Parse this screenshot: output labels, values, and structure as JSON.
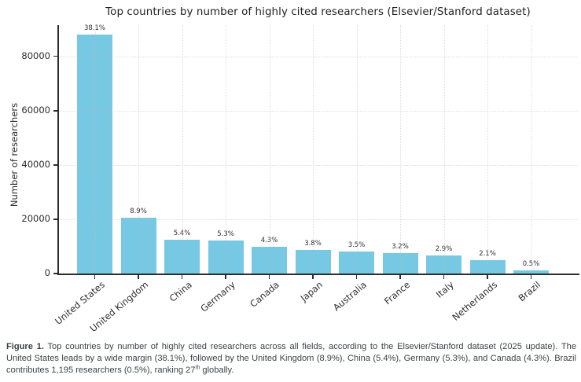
{
  "chart_data": {
    "type": "bar",
    "title": "Top countries by number of highly cited researchers (Elsevier/Stanford dataset)",
    "xlabel": "",
    "ylabel": "Number of researchers",
    "categories": [
      "United States",
      "United Kingdom",
      "China",
      "Germany",
      "Canada",
      "Japan",
      "Australia",
      "France",
      "Italy",
      "Netherlands",
      "Brazil"
    ],
    "values": [
      87900,
      20500,
      12400,
      12200,
      9900,
      8700,
      8050,
      7400,
      6650,
      4850,
      1195
    ],
    "bar_labels": [
      "38.1%",
      "8.9%",
      "5.4%",
      "5.3%",
      "4.3%",
      "3.8%",
      "3.5%",
      "3.2%",
      "2.9%",
      "2.1%",
      "0.5%"
    ],
    "yticks": [
      0,
      20000,
      40000,
      60000,
      80000
    ],
    "ylim": [
      0,
      91500
    ],
    "grid": true,
    "legend_position": "none",
    "bar_color": "#76c8e3",
    "axis_color": "#2c2c2c",
    "grid_color": "#bdbdbd"
  },
  "figure": {
    "caption": {
      "label": "Figure 1.",
      "text_before_sup": " Top countries by number of highly cited researchers across all fields, according to the Elsevier/Stanford dataset (2025 update). The United States leads by a wide margin (38.1%), followed by the United Kingdom (8.9%), China (5.4%), Germany (5.3%), and Canada (4.3%). Brazil contributes 1,195 researchers (0.5%), ranking 27",
      "sup": "th",
      "text_after_sup": " globally."
    }
  }
}
